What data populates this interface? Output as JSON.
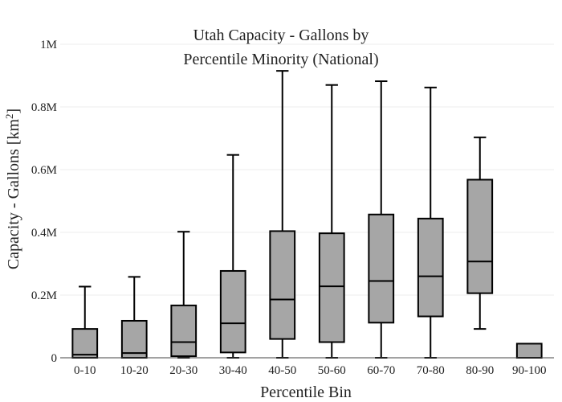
{
  "chart_data": {
    "type": "box",
    "title_lines": [
      "Utah Capacity - Gallons by",
      "Percentile Minority (National)"
    ],
    "xlabel": "Percentile Bin",
    "ylabel_main": "Capacity - Gallons  [km",
    "ylabel_sup": "2",
    "ylabel_end": "]",
    "ylim": [
      0,
      1000000
    ],
    "yticks": [
      {
        "value": 0,
        "label": "0"
      },
      {
        "value": 200000,
        "label": "0.2M"
      },
      {
        "value": 400000,
        "label": "0.4M"
      },
      {
        "value": 600000,
        "label": "0.6M"
      },
      {
        "value": 800000,
        "label": "0.8M"
      },
      {
        "value": 1000000,
        "label": "1M"
      }
    ],
    "grid": true,
    "boxes": [
      {
        "category": "0-10",
        "min": 0,
        "q1": 0,
        "median": 10000,
        "q3": 92000,
        "max": 227000
      },
      {
        "category": "10-20",
        "min": 0,
        "q1": 0,
        "median": 15000,
        "q3": 118000,
        "max": 258000
      },
      {
        "category": "20-30",
        "min": 0,
        "q1": 5000,
        "median": 50000,
        "q3": 167000,
        "max": 402000
      },
      {
        "category": "30-40",
        "min": 0,
        "q1": 17000,
        "median": 110000,
        "q3": 277000,
        "max": 647000
      },
      {
        "category": "40-50",
        "min": 0,
        "q1": 60000,
        "median": 186000,
        "q3": 404000,
        "max": 915000
      },
      {
        "category": "50-60",
        "min": 0,
        "q1": 50000,
        "median": 228000,
        "q3": 397000,
        "max": 870000
      },
      {
        "category": "60-70",
        "min": 0,
        "q1": 112000,
        "median": 245000,
        "q3": 457000,
        "max": 882000
      },
      {
        "category": "70-80",
        "min": 0,
        "q1": 132000,
        "median": 260000,
        "q3": 444000,
        "max": 862000
      },
      {
        "category": "80-90",
        "min": 92000,
        "q1": 206000,
        "median": 307000,
        "q3": 568000,
        "max": 703000
      },
      {
        "category": "90-100",
        "min": 0,
        "q1": 0,
        "median": 0,
        "q3": 45000,
        "max": 45000
      }
    ]
  }
}
